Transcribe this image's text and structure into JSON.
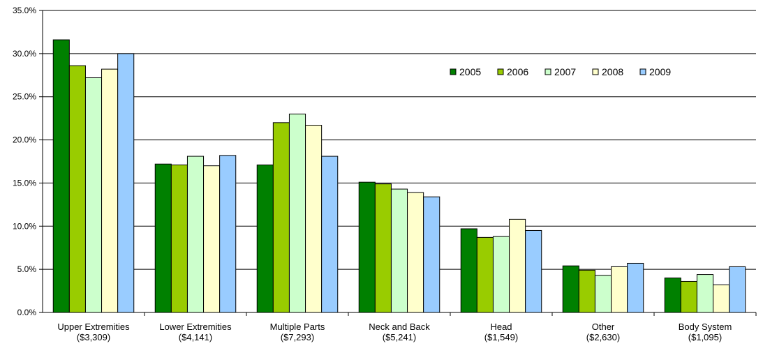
{
  "chart_data": {
    "type": "bar",
    "categories": [
      [
        "Upper Extremities",
        "($3,309)"
      ],
      [
        "Lower Extremities",
        "($4,141)"
      ],
      [
        "Multiple Parts",
        "($7,293)"
      ],
      [
        "Neck and Back",
        "($5,241)"
      ],
      [
        "Head",
        "($1,549)"
      ],
      [
        "Other",
        "($2,630)"
      ],
      [
        "Body System",
        "($1,095)"
      ]
    ],
    "series": [
      {
        "name": "2005",
        "color": "#008000",
        "values": [
          31.6,
          17.2,
          17.1,
          15.1,
          9.7,
          5.4,
          4.0
        ]
      },
      {
        "name": "2006",
        "color": "#99CC00",
        "values": [
          28.6,
          17.1,
          22.0,
          14.9,
          8.7,
          4.9,
          3.6
        ]
      },
      {
        "name": "2007",
        "color": "#CCFFCC",
        "values": [
          27.2,
          18.1,
          23.0,
          14.3,
          8.8,
          4.3,
          4.4
        ]
      },
      {
        "name": "2008",
        "color": "#FFFFCC",
        "values": [
          28.2,
          17.0,
          21.7,
          13.9,
          10.8,
          5.3,
          3.2
        ]
      },
      {
        "name": "2009",
        "color": "#99CCFF",
        "values": [
          30.0,
          18.2,
          18.1,
          13.4,
          9.5,
          5.7,
          5.3
        ]
      }
    ],
    "ylim": [
      0,
      35
    ],
    "yticks": [
      "0.0%",
      "5.0%",
      "10.0%",
      "15.0%",
      "20.0%",
      "25.0%",
      "30.0%",
      "35.0%"
    ],
    "grid": true,
    "legend_position": "top-right"
  }
}
